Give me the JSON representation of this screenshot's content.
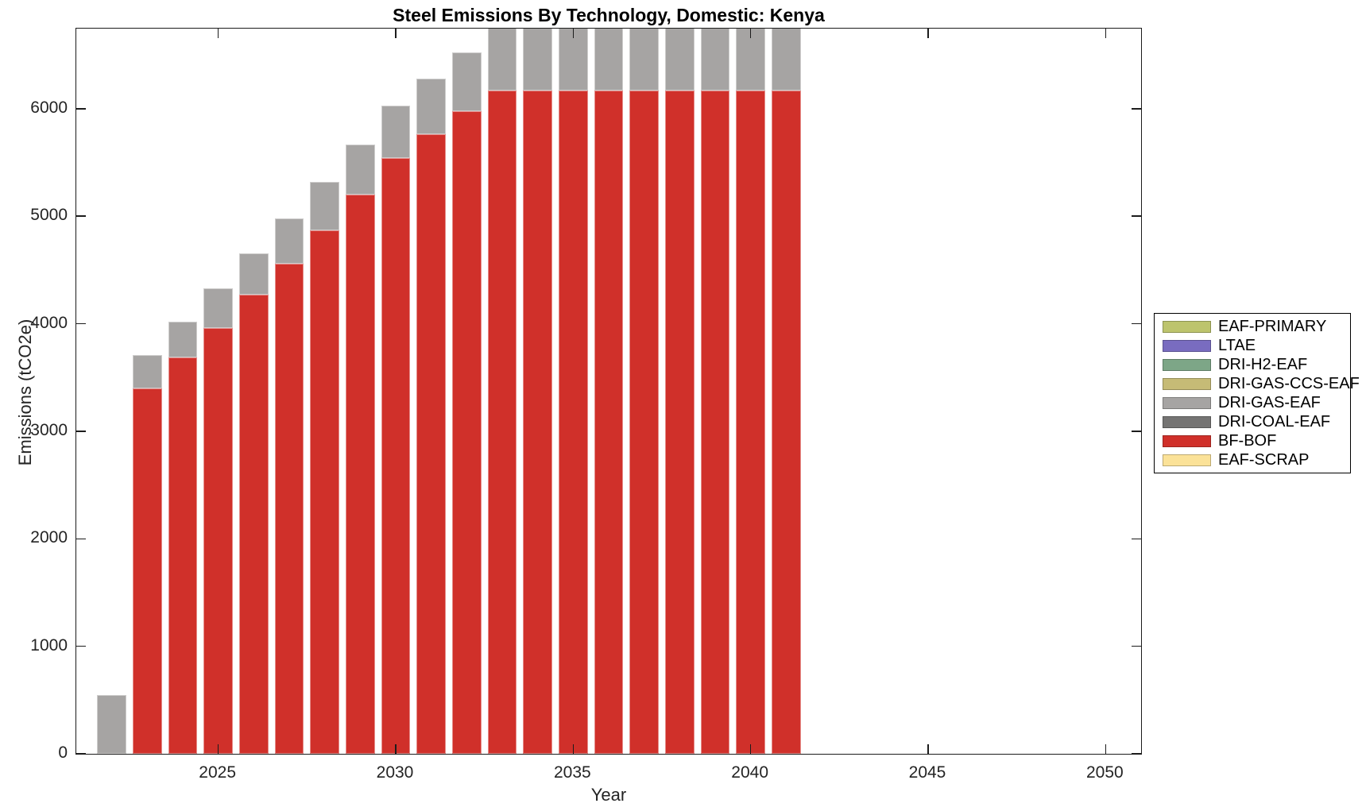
{
  "figure": {
    "title": "Steel Emissions By Technology, Domestic: Kenya",
    "xlabel": "Year",
    "ylabel": "Emissions (tCO2e)",
    "background": "#ffffff",
    "axis_color": "#1c1c1c",
    "tick_label_color": "#242424"
  },
  "chart_data": {
    "type": "bar",
    "stacked": true,
    "title": "Steel Emissions By Technology, Domestic: Kenya",
    "xlabel": "Year",
    "ylabel": "Emissions (tCO2e)",
    "xlim": [
      2021,
      2051
    ],
    "ylim": [
      0,
      6745
    ],
    "xticks": [
      2025,
      2030,
      2035,
      2040,
      2045,
      2050
    ],
    "yticks": [
      0,
      1000,
      2000,
      3000,
      4000,
      5000,
      6000
    ],
    "grid": false,
    "bar_width_years": 0.82,
    "note": "Bars for 2033-2041 exceed the y-axis limit and are clipped at the top of the plot box",
    "years": [
      2022,
      2023,
      2024,
      2025,
      2026,
      2027,
      2028,
      2029,
      2030,
      2031,
      2032,
      2033,
      2034,
      2035,
      2036,
      2037,
      2038,
      2039,
      2040,
      2041
    ],
    "series": [
      {
        "name": "BF-BOF",
        "color": "#d0302a",
        "values": [
          0,
          3400,
          3690,
          3960,
          4270,
          4560,
          4870,
          5200,
          5540,
          5765,
          5975,
          6170,
          6170,
          6170,
          6170,
          6170,
          6170,
          6170,
          6170,
          6170
        ]
      },
      {
        "name": "DRI-GAS-EAF",
        "color": "#a6a4a3",
        "values": [
          550,
          310,
          330,
          370,
          385,
          420,
          450,
          470,
          490,
          515,
          550,
          610,
          610,
          610,
          610,
          610,
          610,
          610,
          610,
          610
        ]
      },
      {
        "name": "EAF-PRIMARY",
        "color": "#bdc46d",
        "values": [
          0,
          0,
          0,
          0,
          0,
          0,
          0,
          0,
          0,
          0,
          0,
          0,
          0,
          0,
          0,
          0,
          0,
          0,
          0,
          0
        ]
      },
      {
        "name": "LTAE",
        "color": "#796cc0",
        "values": [
          0,
          0,
          0,
          0,
          0,
          0,
          0,
          0,
          0,
          0,
          0,
          0,
          0,
          0,
          0,
          0,
          0,
          0,
          0,
          0
        ]
      },
      {
        "name": "DRI-H2-EAF",
        "color": "#7da687",
        "values": [
          0,
          0,
          0,
          0,
          0,
          0,
          0,
          0,
          0,
          0,
          0,
          0,
          0,
          0,
          0,
          0,
          0,
          0,
          0,
          0
        ]
      },
      {
        "name": "DRI-GAS-CCS-EAF",
        "color": "#c6bb76",
        "values": [
          0,
          0,
          0,
          0,
          0,
          0,
          0,
          0,
          0,
          0,
          0,
          0,
          0,
          0,
          0,
          0,
          0,
          0,
          0,
          0
        ]
      },
      {
        "name": "DRI-COAL-EAF",
        "color": "#757473",
        "values": [
          0,
          0,
          0,
          0,
          0,
          0,
          0,
          0,
          0,
          0,
          0,
          0,
          0,
          0,
          0,
          0,
          0,
          0,
          0,
          0
        ]
      },
      {
        "name": "EAF-SCRAP",
        "color": "#fbe298",
        "values": [
          0,
          0,
          0,
          0,
          0,
          0,
          0,
          0,
          0,
          0,
          0,
          0,
          0,
          0,
          0,
          0,
          0,
          0,
          0,
          0
        ]
      }
    ],
    "legend_position": "right",
    "legend": [
      {
        "label": "EAF-PRIMARY",
        "color": "#bdc46d"
      },
      {
        "label": "LTAE",
        "color": "#796cc0"
      },
      {
        "label": "DRI-H2-EAF",
        "color": "#7da687"
      },
      {
        "label": "DRI-GAS-CCS-EAF",
        "color": "#c6bb76"
      },
      {
        "label": "DRI-GAS-EAF",
        "color": "#a6a4a3"
      },
      {
        "label": "DRI-COAL-EAF",
        "color": "#757473"
      },
      {
        "label": "BF-BOF",
        "color": "#d0302a"
      },
      {
        "label": "EAF-SCRAP",
        "color": "#fbe298"
      }
    ]
  }
}
